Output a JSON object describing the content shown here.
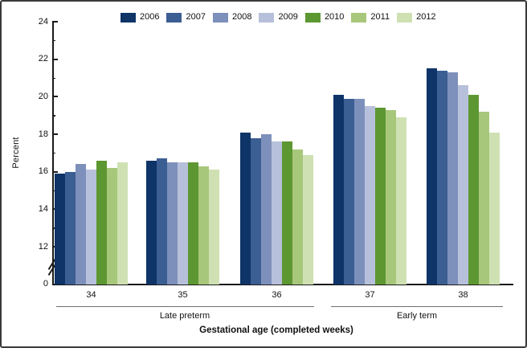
{
  "figure": {
    "y_axis_title": "Percent",
    "x_axis_title": "Gestational age (completed weeks)",
    "group_spans": [
      {
        "label": "Late preterm",
        "from": "34",
        "to": "36"
      },
      {
        "label": "Early term",
        "from": "37",
        "to": "38"
      }
    ]
  },
  "chart_data": {
    "type": "bar",
    "title": "",
    "xlabel": "Gestational age (completed weeks)",
    "ylabel": "Percent",
    "categories": [
      "34",
      "35",
      "36",
      "37",
      "38"
    ],
    "series": [
      {
        "name": "2006",
        "color": "#0e3468",
        "values": [
          15.9,
          16.6,
          18.1,
          20.1,
          21.5
        ]
      },
      {
        "name": "2007",
        "color": "#3b5e93",
        "values": [
          16.0,
          16.7,
          17.8,
          19.9,
          21.4
        ]
      },
      {
        "name": "2008",
        "color": "#7d90bb",
        "values": [
          16.4,
          16.5,
          18.0,
          19.9,
          21.3
        ]
      },
      {
        "name": "2009",
        "color": "#b7c0da",
        "values": [
          16.1,
          16.5,
          17.6,
          19.5,
          20.6
        ]
      },
      {
        "name": "2010",
        "color": "#5d9732",
        "values": [
          16.6,
          16.5,
          17.6,
          19.4,
          20.1
        ]
      },
      {
        "name": "2011",
        "color": "#a7c77b",
        "values": [
          16.2,
          16.3,
          17.2,
          19.3,
          19.2
        ]
      },
      {
        "name": "2012",
        "color": "#cfe1b2",
        "values": [
          16.5,
          16.1,
          16.9,
          18.9,
          18.1
        ]
      }
    ],
    "y_major_ticks": [
      24,
      22,
      20,
      18,
      16,
      14,
      12
    ],
    "y_minor_ticks": [
      23,
      21,
      19,
      17,
      15,
      13
    ],
    "baseline_label": "0",
    "ylim_display": [
      12,
      24
    ],
    "axis_break": true,
    "legend_position": "top",
    "grid": false
  }
}
